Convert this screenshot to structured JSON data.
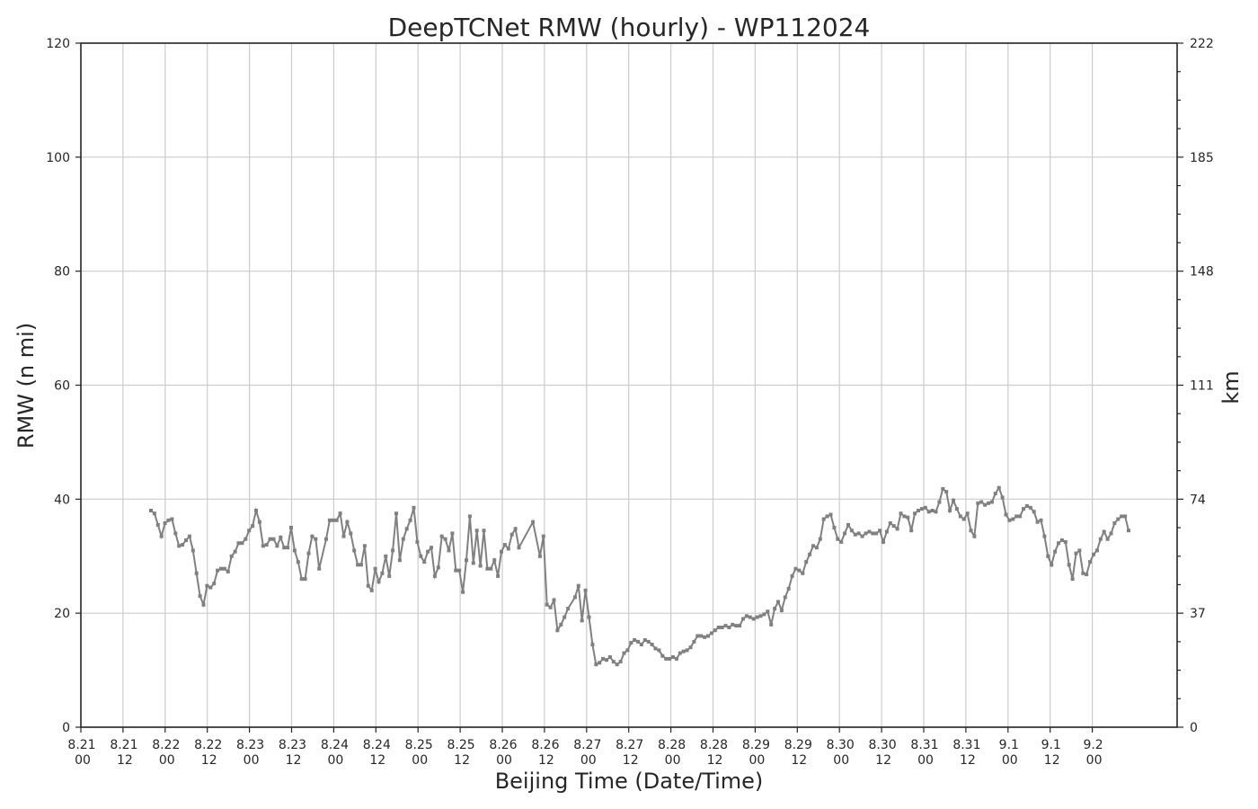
{
  "chart_data": {
    "type": "line",
    "title": "DeepTCNet RMW (hourly) - WP112024",
    "xlabel": "Beijing Time (Date/Time)",
    "ylabel": "RMW (n mi)",
    "ylabel_right": "km",
    "ylim": [
      0,
      120
    ],
    "y_ticks": [
      0,
      20,
      40,
      60,
      80,
      100,
      120
    ],
    "y_right_ticks": [
      0,
      37,
      74,
      111,
      148,
      185,
      222
    ],
    "y_right_minor_step": 0.2,
    "grid": true,
    "x_ticks": [
      {
        "date": "8.21",
        "hour": "00"
      },
      {
        "date": "8.21",
        "hour": "12"
      },
      {
        "date": "8.22",
        "hour": "00"
      },
      {
        "date": "8.22",
        "hour": "12"
      },
      {
        "date": "8.23",
        "hour": "00"
      },
      {
        "date": "8.23",
        "hour": "12"
      },
      {
        "date": "8.24",
        "hour": "00"
      },
      {
        "date": "8.24",
        "hour": "12"
      },
      {
        "date": "8.25",
        "hour": "00"
      },
      {
        "date": "8.25",
        "hour": "12"
      },
      {
        "date": "8.26",
        "hour": "00"
      },
      {
        "date": "8.26",
        "hour": "12"
      },
      {
        "date": "8.27",
        "hour": "00"
      },
      {
        "date": "8.27",
        "hour": "12"
      },
      {
        "date": "8.28",
        "hour": "00"
      },
      {
        "date": "8.28",
        "hour": "12"
      },
      {
        "date": "8.29",
        "hour": "00"
      },
      {
        "date": "8.29",
        "hour": "12"
      },
      {
        "date": "8.30",
        "hour": "00"
      },
      {
        "date": "8.30",
        "hour": "12"
      },
      {
        "date": "8.31",
        "hour": "00"
      },
      {
        "date": "8.31",
        "hour": "12"
      },
      {
        "date": "9.1",
        "hour": "00"
      },
      {
        "date": "9.1",
        "hour": "12"
      },
      {
        "date": "9.2",
        "hour": "00"
      }
    ],
    "x_start": "8.21 00",
    "x_end": "9.2 12",
    "x_step_hours": 1,
    "series": [
      {
        "color": "#808080",
        "values": [
          38.0,
          37.5,
          35.5,
          33.5,
          35.8,
          36.3,
          36.5,
          34.0,
          31.8,
          32.0,
          32.8,
          33.5,
          31.0,
          27.0,
          23.0,
          21.5,
          24.8,
          24.5,
          25.2,
          27.5,
          27.8,
          27.8,
          27.3,
          30.0,
          30.8,
          32.3,
          32.3,
          33.0,
          34.5,
          35.3,
          38.0,
          36.0,
          31.8,
          32.0,
          33.0,
          33.0,
          31.8,
          33.3,
          31.5,
          31.5,
          35.0,
          31.0,
          29.0,
          26.0,
          26.0,
          30.5,
          33.5,
          33.0,
          27.8,
          null,
          33.0,
          36.3,
          36.3,
          36.3,
          37.5,
          33.5,
          36.0,
          34.0,
          31.0,
          28.5,
          28.5,
          31.8,
          24.8,
          24.0,
          27.8,
          25.5,
          27.0,
          30.0,
          26.5,
          31.0,
          37.5,
          29.3,
          33.0,
          34.8,
          36.3,
          38.5,
          32.5,
          30.0,
          29.0,
          30.8,
          31.5,
          26.5,
          28.0,
          33.5,
          33.0,
          31.0,
          34.0,
          27.5,
          27.5,
          23.7,
          29.3,
          37.0,
          28.8,
          34.5,
          28.3,
          34.5,
          27.8,
          27.8,
          29.3,
          26.5,
          30.8,
          32.0,
          31.3,
          33.8,
          34.8,
          31.5,
          null,
          null,
          null,
          36.0,
          null,
          30.0,
          33.5,
          21.5,
          21.0,
          22.3,
          17.0,
          18.0,
          19.3,
          20.8,
          null,
          22.8,
          24.8,
          18.7,
          24.0,
          19.3,
          14.5,
          11.0,
          11.3,
          12.0,
          11.8,
          12.3,
          11.5,
          11.0,
          11.5,
          13.0,
          13.5,
          14.8,
          15.3,
          15.0,
          14.5,
          15.3,
          15.0,
          14.5,
          13.8,
          13.5,
          12.5,
          12.0,
          12.0,
          12.3,
          12.0,
          13.0,
          13.3,
          13.5,
          14.0,
          15.0,
          16.0,
          16.0,
          15.8,
          16.0,
          16.5,
          17.0,
          17.5,
          17.5,
          17.8,
          17.5,
          18.0,
          17.8,
          17.8,
          19.0,
          19.5,
          19.3,
          19.0,
          19.3,
          19.5,
          19.8,
          20.3,
          18.0,
          20.8,
          22.0,
          20.5,
          22.8,
          24.3,
          26.5,
          27.8,
          27.5,
          27.0,
          29.0,
          30.3,
          31.8,
          31.5,
          33.0,
          36.5,
          37.0,
          37.3,
          35.0,
          33.0,
          32.5,
          34.0,
          35.5,
          34.5,
          33.8,
          34.0,
          33.5,
          34.0,
          34.3,
          34.0,
          34.0,
          34.5,
          32.5,
          34.3,
          35.8,
          35.3,
          34.8,
          37.5,
          37.0,
          36.8,
          34.5,
          37.5,
          38.0,
          38.3,
          38.5,
          37.8,
          38.0,
          37.8,
          39.5,
          41.8,
          41.3,
          38.0,
          39.8,
          38.3,
          37.0,
          36.5,
          37.5,
          34.5,
          33.5,
          39.3,
          39.5,
          39.0,
          39.3,
          39.5,
          41.0,
          42.0,
          40.3,
          37.3,
          36.3,
          36.5,
          37.0,
          37.0,
          38.3,
          38.8,
          38.5,
          37.8,
          36.0,
          36.3,
          33.5,
          30.0,
          28.5,
          30.8,
          32.3,
          32.8,
          32.5,
          28.5,
          26.0,
          30.5,
          31.0,
          27.0,
          26.8,
          29.0,
          30.3,
          31.0,
          33.0,
          34.3,
          33.0,
          34.0,
          35.8,
          36.5,
          37.0,
          37.0,
          34.5
        ]
      }
    ]
  }
}
